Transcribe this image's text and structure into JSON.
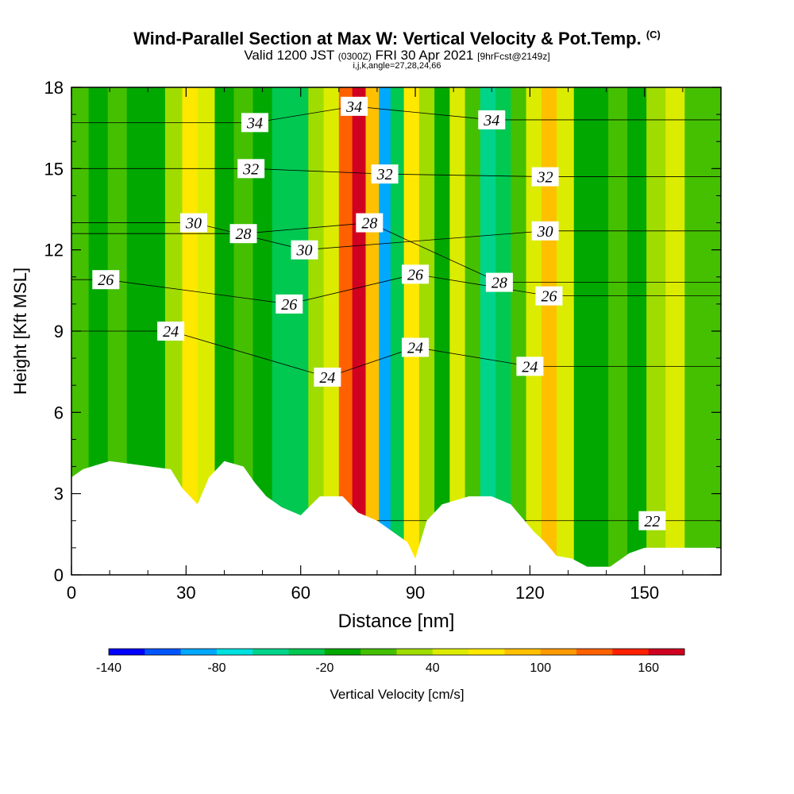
{
  "title": {
    "main": "Wind-Parallel Section at Max W: Vertical Velocity & Pot.Temp.",
    "main_mark": "(C)",
    "valid_prefix": "Valid 1200 JST",
    "valid_utc": "(0300Z)",
    "valid_date": "FRI 30 Apr 2021",
    "forecast_tag": "[9hrFcst@2149z]",
    "params": "i,j,k,angle=27,28,24,66"
  },
  "chart_data": {
    "type": "heatmap",
    "xlabel": "Distance [nm]",
    "ylabel": "Height [Kft MSL]",
    "xlim": [
      0,
      170
    ],
    "ylim": [
      0,
      18
    ],
    "x_ticks": [
      0,
      30,
      60,
      90,
      120,
      150
    ],
    "y_ticks": [
      0,
      3,
      6,
      9,
      12,
      15,
      18
    ],
    "colorbar": {
      "label": "Vertical Velocity [cm/s]",
      "tick_labels": [
        "-140",
        "-80",
        "-20",
        "40",
        "100",
        "160"
      ],
      "tick_values": [
        -140,
        -80,
        -20,
        40,
        100,
        160
      ],
      "bin_edges": [
        -140,
        -120,
        -100,
        -80,
        -60,
        -40,
        -20,
        0,
        20,
        40,
        60,
        80,
        100,
        120,
        140,
        160,
        180
      ],
      "colors": [
        "#0000ff",
        "#0055ff",
        "#00a8ff",
        "#00e0e0",
        "#00d48a",
        "#00c850",
        "#00a800",
        "#44c000",
        "#a0dc00",
        "#dcec00",
        "#ffe800",
        "#ffc000",
        "#ff9a00",
        "#ff6000",
        "#ff2000",
        "#d00020",
        "#a00060"
      ]
    },
    "vertical_velocity_columns": [
      {
        "x": 2,
        "w": 0
      },
      {
        "x": 7,
        "w": -10
      },
      {
        "x": 12,
        "w": 10
      },
      {
        "x": 17,
        "w": -5
      },
      {
        "x": 22,
        "w": -20
      },
      {
        "x": 27,
        "w": 20
      },
      {
        "x": 31,
        "w": 70
      },
      {
        "x": 35,
        "w": 50
      },
      {
        "x": 40,
        "w": -10
      },
      {
        "x": 45,
        "w": 10
      },
      {
        "x": 50,
        "w": -20
      },
      {
        "x": 55,
        "w": -40
      },
      {
        "x": 60,
        "w": -30
      },
      {
        "x": 64,
        "w": 20
      },
      {
        "x": 68,
        "w": 50
      },
      {
        "x": 72,
        "w": 120
      },
      {
        "x": 75,
        "w": 170
      },
      {
        "x": 79,
        "w": 90
      },
      {
        "x": 82,
        "w": -100
      },
      {
        "x": 85,
        "w": -40
      },
      {
        "x": 89,
        "w": 70
      },
      {
        "x": 93,
        "w": 20
      },
      {
        "x": 97,
        "w": -10
      },
      {
        "x": 101,
        "w": 40
      },
      {
        "x": 105,
        "w": 0
      },
      {
        "x": 109,
        "w": -60
      },
      {
        "x": 113,
        "w": -40
      },
      {
        "x": 117,
        "w": 10
      },
      {
        "x": 121,
        "w": 50
      },
      {
        "x": 125,
        "w": 90
      },
      {
        "x": 129,
        "w": 40
      },
      {
        "x": 134,
        "w": -10
      },
      {
        "x": 138,
        "w": -20
      },
      {
        "x": 143,
        "w": 10
      },
      {
        "x": 148,
        "w": -10
      },
      {
        "x": 153,
        "w": 20
      },
      {
        "x": 158,
        "w": 40
      },
      {
        "x": 163,
        "w": 10
      },
      {
        "x": 168,
        "w": 0
      }
    ],
    "terrain_profile": [
      [
        0,
        3.6
      ],
      [
        3,
        3.9
      ],
      [
        10,
        4.2
      ],
      [
        26,
        3.9
      ],
      [
        29,
        3.2
      ],
      [
        33,
        2.6
      ],
      [
        36,
        3.6
      ],
      [
        40,
        4.2
      ],
      [
        45,
        4.0
      ],
      [
        48,
        3.4
      ],
      [
        51,
        2.9
      ],
      [
        55,
        2.5
      ],
      [
        60,
        2.2
      ],
      [
        65,
        2.9
      ],
      [
        71,
        2.9
      ],
      [
        75,
        2.3
      ],
      [
        80,
        2.0
      ],
      [
        84,
        1.6
      ],
      [
        88,
        1.2
      ],
      [
        90,
        0.6
      ],
      [
        93,
        2.0
      ],
      [
        97,
        2.6
      ],
      [
        104,
        2.9
      ],
      [
        110,
        2.9
      ],
      [
        115,
        2.6
      ],
      [
        118,
        2.1
      ],
      [
        121,
        1.6
      ],
      [
        124,
        1.2
      ],
      [
        127,
        0.7
      ],
      [
        131,
        0.6
      ],
      [
        135,
        0.3
      ],
      [
        141,
        0.3
      ],
      [
        146,
        0.8
      ],
      [
        150,
        1.0
      ],
      [
        160,
        1.0
      ],
      [
        170,
        1.0
      ]
    ],
    "theta_contours": [
      {
        "value": 22,
        "label": "22",
        "label_at": [
          152,
          2.0
        ]
      },
      {
        "value": 24,
        "label": "24",
        "label_at": [
          26,
          9.0
        ]
      },
      {
        "value": 24,
        "label": "24",
        "label_at": [
          67,
          7.3
        ]
      },
      {
        "value": 24,
        "label": "24",
        "label_at": [
          90,
          8.4
        ]
      },
      {
        "value": 24,
        "label": "24",
        "label_at": [
          120,
          7.7
        ]
      },
      {
        "value": 26,
        "label": "26",
        "label_at": [
          9,
          10.9
        ]
      },
      {
        "value": 26,
        "label": "26",
        "label_at": [
          57,
          10.0
        ]
      },
      {
        "value": 26,
        "label": "26",
        "label_at": [
          90,
          11.1
        ]
      },
      {
        "value": 26,
        "label": "26",
        "label_at": [
          125,
          10.3
        ]
      },
      {
        "value": 28,
        "label": "28",
        "label_at": [
          45,
          12.6
        ]
      },
      {
        "value": 28,
        "label": "28",
        "label_at": [
          78,
          13.0
        ]
      },
      {
        "value": 28,
        "label": "28",
        "label_at": [
          112,
          10.8
        ]
      },
      {
        "value": 30,
        "label": "30",
        "label_at": [
          32,
          13.0
        ]
      },
      {
        "value": 30,
        "label": "30",
        "label_at": [
          61,
          12.0
        ]
      },
      {
        "value": 30,
        "label": "30",
        "label_at": [
          124,
          12.7
        ]
      },
      {
        "value": 32,
        "label": "32",
        "label_at": [
          47,
          15.0
        ]
      },
      {
        "value": 32,
        "label": "32",
        "label_at": [
          82,
          14.8
        ]
      },
      {
        "value": 32,
        "label": "32",
        "label_at": [
          124,
          14.7
        ]
      },
      {
        "value": 34,
        "label": "34",
        "label_at": [
          48,
          16.7
        ]
      },
      {
        "value": 34,
        "label": "34",
        "label_at": [
          74,
          17.3
        ]
      },
      {
        "value": 34,
        "label": "34",
        "label_at": [
          110,
          16.8
        ]
      }
    ]
  }
}
